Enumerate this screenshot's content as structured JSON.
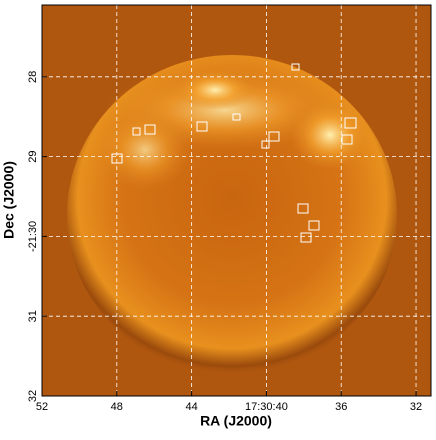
{
  "chart_data": {
    "type": "image",
    "xlabel": "RA (J2000)",
    "ylabel": "Dec (J2000)",
    "xlim": [
      52,
      31.2
    ],
    "ylim": [
      32,
      27.1
    ],
    "xticks": [
      52,
      48,
      44,
      {
        "value": 40,
        "label": "17:30:40"
      },
      36,
      32
    ],
    "yticks": [
      28,
      29,
      {
        "value": 30,
        "label": "-21:30"
      },
      31,
      32
    ],
    "grid": true,
    "color": "#b0570f"
  }
}
